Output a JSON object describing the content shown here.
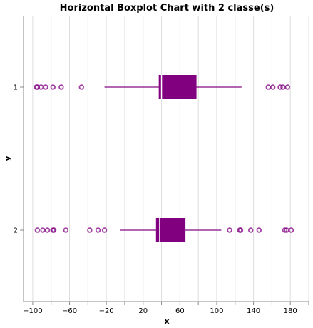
{
  "chart_data": {
    "type": "boxplot",
    "orientation": "horizontal",
    "title": "Horizontal Boxplot Chart with 2 classe(s)",
    "xlabel": "x",
    "ylabel": "y",
    "xlim": [
      -110,
      200
    ],
    "x_ticks": [
      -100,
      -80,
      -60,
      -40,
      -20,
      0,
      20,
      40,
      60,
      80,
      100,
      120,
      140,
      160,
      180,
      200
    ],
    "x_tick_labels": [
      "−100",
      "",
      "−60",
      "",
      "−20",
      "",
      "20",
      "",
      "60",
      "",
      "100",
      "",
      "140",
      "",
      "180",
      ""
    ],
    "grid": true,
    "color": "#800080",
    "series": [
      {
        "category": "1",
        "whisker_low": -22,
        "q1": 37,
        "median": 40,
        "q3": 78,
        "whisker_high": 127,
        "outliers": [
          -96,
          -95,
          -91,
          -86,
          -78,
          -69,
          -47,
          156,
          161,
          169,
          172,
          177
        ]
      },
      {
        "category": "2",
        "whisker_low": -5,
        "q1": 34,
        "median": 38,
        "q3": 66,
        "whisker_high": 105,
        "outliers": [
          -95,
          -89,
          -84,
          -78,
          -77,
          -64,
          -38,
          -29,
          -22,
          114,
          125,
          126,
          137,
          146,
          174,
          176,
          181
        ]
      }
    ]
  }
}
